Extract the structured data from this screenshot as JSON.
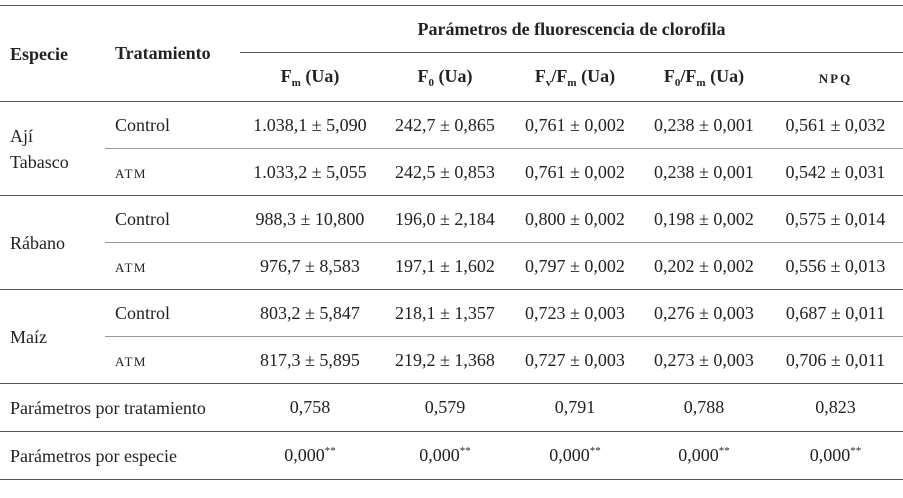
{
  "header": {
    "species": "Especie",
    "treatment": "Tratamiento",
    "group": "Parámetros de fluorescencia de clorofila",
    "columns": [
      [
        {
          "text": "F"
        },
        {
          "text": "m",
          "sub": true
        },
        {
          "text": " (Ua)"
        }
      ],
      [
        {
          "text": "F"
        },
        {
          "text": "0",
          "sub": true
        },
        {
          "text": " (Ua)"
        }
      ],
      [
        {
          "text": "F"
        },
        {
          "text": "v",
          "sub": true
        },
        {
          "text": "/F"
        },
        {
          "text": "m",
          "sub": true
        },
        {
          "text": " (Ua)"
        }
      ],
      [
        {
          "text": "F"
        },
        {
          "text": "0",
          "sub": true
        },
        {
          "text": "/F"
        },
        {
          "text": "m",
          "sub": true
        },
        {
          "text": " (Ua)"
        }
      ],
      [
        {
          "text": "NPQ"
        }
      ]
    ]
  },
  "groups": [
    {
      "species": [
        "Ají",
        "Tabasco"
      ],
      "rows": [
        {
          "treatment": "Control",
          "values": [
            "1.038,1 ± 5,090",
            "242,7 ± 0,865",
            "0,761 ± 0,002",
            "0,238 ± 0,001",
            "0,561 ± 0,032"
          ]
        },
        {
          "treatment": "ATM",
          "values": [
            "1.033,2 ± 5,055",
            "242,5 ± 0,853",
            "0,761 ± 0,002",
            "0,238 ± 0,001",
            "0,542 ± 0,031"
          ]
        }
      ]
    },
    {
      "species": [
        "Rábano"
      ],
      "rows": [
        {
          "treatment": "Control",
          "values": [
            "988,3 ± 10,800",
            "196,0 ± 2,184",
            "0,800 ± 0,002",
            "0,198 ± 0,002",
            "0,575 ± 0,014"
          ]
        },
        {
          "treatment": "ATM",
          "values": [
            "976,7 ± 8,583",
            "197,1 ± 1,602",
            "0,797 ± 0,002",
            "0,202 ± 0,002",
            "0,556 ± 0,013"
          ]
        }
      ]
    },
    {
      "species": [
        "Maíz"
      ],
      "rows": [
        {
          "treatment": "Control",
          "values": [
            "803,2 ± 5,847",
            "218,1 ± 1,357",
            "0,723 ± 0,003",
            "0,276 ± 0,003",
            "0,687 ± 0,011"
          ]
        },
        {
          "treatment": "ATM",
          "values": [
            "817,3 ± 5,895",
            "219,2 ± 1,368",
            "0,727 ± 0,003",
            "0,273 ± 0,003",
            "0,706 ± 0,011"
          ]
        }
      ]
    }
  ],
  "footer": [
    {
      "label": "Parámetros por tratamiento",
      "values": [
        {
          "text": "0,758"
        },
        {
          "text": "0,579"
        },
        {
          "text": "0,791"
        },
        {
          "text": "0,788"
        },
        {
          "text": "0,823"
        }
      ]
    },
    {
      "label": "Parámetros por especie",
      "values": [
        {
          "text": "0,000",
          "sup": "**"
        },
        {
          "text": "0,000",
          "sup": "**"
        },
        {
          "text": "0,000",
          "sup": "**"
        },
        {
          "text": "0,000",
          "sup": "**"
        },
        {
          "text": "0,000",
          "sup": "**"
        }
      ]
    }
  ]
}
